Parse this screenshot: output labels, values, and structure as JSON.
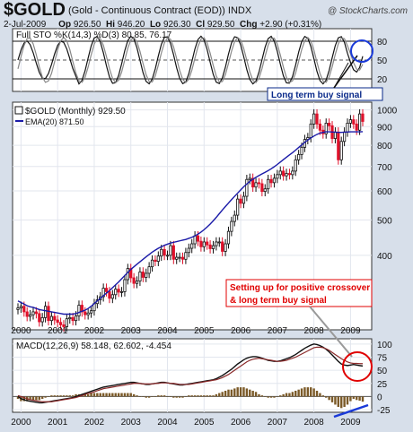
{
  "header": {
    "symbol": "$GOLD",
    "description": "(Gold - Continuous Contract (EOD)) INDX",
    "watermark": "@ StockCharts.com",
    "date": "2-Jul-2009",
    "open_label": "Op",
    "open": "926.50",
    "high_label": "Hi",
    "high": "946.20",
    "low_label": "Lo",
    "low": "926.30",
    "close_label": "Cl",
    "close": "929.50",
    "chg_label": "Chg",
    "chg": "+2.90 (+0.31%)"
  },
  "panels": {
    "sto": {
      "legend": "Full STO %K(14,3) %D(3) 80.85, 76.17"
    },
    "price": {
      "legend_price": "$GOLD (Monthly) 929.50",
      "legend_ema": "EMA(20) 871.50"
    },
    "macd": {
      "legend": "MACD(12,26,9) 58.148, 62.602, -4.454"
    }
  },
  "annotations": {
    "buy_signal": "Long term buy signal",
    "setup_line1": "Setting up for positive crossover",
    "setup_line2": "& long term buy signal"
  },
  "colors": {
    "up": "#111111",
    "down": "#e0102a",
    "ema": "#1a1aa8",
    "signal": "#8b2a2a",
    "accent": "#0a2a8a",
    "callout_red": "#e00000"
  },
  "chart_data": [
    {
      "type": "line",
      "name": "Full STO",
      "x_ticks": [],
      "y_ticks": [
        20,
        50,
        80
      ],
      "ylim": [
        0,
        100
      ]
    },
    {
      "type": "bar",
      "name": "$GOLD Monthly",
      "x_ticks": [
        "2000",
        "2001",
        "2002",
        "2003",
        "2004",
        "2005",
        "2006",
        "2007",
        "2008",
        "2009"
      ],
      "y_ticks": [
        400,
        500,
        600,
        700,
        800,
        900,
        1000
      ],
      "ylim": [
        250,
        1050
      ],
      "scale": "log",
      "series": [
        {
          "name": "Close",
          "values": [
            287,
            290,
            280,
            272,
            275,
            280,
            277,
            263,
            270,
            290,
            265,
            272,
            266,
            262,
            258,
            255,
            268,
            270,
            265,
            273,
            292,
            280,
            275,
            278,
            282,
            295,
            302,
            308,
            325,
            318,
            305,
            312,
            323,
            317,
            318,
            343,
            368,
            347,
            335,
            340,
            360,
            348,
            357,
            372,
            388,
            385,
            398,
            415,
            400,
            400,
            425,
            390,
            395,
            395,
            390,
            407,
            418,
            430,
            452,
            437,
            422,
            435,
            427,
            417,
            425,
            435,
            435,
            410,
            430,
            465,
            495,
            515,
            570,
            555,
            580,
            645,
            650,
            615,
            632,
            628,
            598,
            608,
            645,
            632,
            650,
            665,
            680,
            660,
            670,
            665,
            680,
            730,
            755,
            790,
            830,
            840,
            915,
            975,
            915,
            880,
            860,
            920,
            905,
            835,
            870,
            730,
            820,
            870,
            920,
            940,
            915,
            880,
            975,
            930
          ]
        },
        {
          "name": "EMA(20)",
          "values": [
            300,
            297,
            294,
            291,
            289,
            288,
            286,
            284,
            283,
            282,
            281,
            280,
            279,
            278,
            277,
            276,
            276,
            276,
            276,
            277,
            279,
            281,
            283,
            286,
            290,
            295,
            300,
            305,
            310,
            315,
            320,
            326,
            332,
            338,
            345,
            352,
            359,
            366,
            372,
            378,
            384,
            390,
            396,
            402,
            408,
            413,
            418,
            422,
            426,
            429,
            432,
            434,
            436,
            438,
            440,
            442,
            445,
            448,
            452,
            457,
            463,
            470,
            478,
            487,
            497,
            508,
            520,
            532,
            544,
            556,
            568,
            580,
            592,
            604,
            616,
            627,
            637,
            646,
            654,
            661,
            668,
            675,
            682,
            690,
            699,
            709,
            720,
            731,
            742,
            753,
            764,
            776,
            789,
            802,
            815,
            827,
            838,
            848,
            857,
            864,
            868,
            871,
            871,
            870,
            869,
            868,
            868,
            869,
            870,
            871,
            871,
            871,
            871,
            871.5
          ]
        }
      ]
    },
    {
      "type": "line",
      "name": "MACD",
      "y_ticks": [
        -25,
        0,
        25,
        50,
        75,
        100
      ],
      "ylim": [
        -30,
        110
      ],
      "series": [
        {
          "name": "MACD",
          "values": [
            0,
            -4,
            -6,
            -8,
            -9,
            -10,
            -11,
            -12,
            -12,
            -11,
            -10,
            -9,
            -8,
            -7,
            -6,
            -5,
            -4,
            -3,
            -2,
            0,
            2,
            4,
            6,
            8,
            10,
            12,
            14,
            16,
            18,
            19,
            20,
            21,
            22,
            23,
            24,
            25,
            26,
            27,
            27,
            26,
            25,
            24,
            23,
            23,
            24,
            25,
            26,
            27,
            27,
            26,
            25,
            24,
            23,
            22,
            22,
            23,
            24,
            25,
            26,
            27,
            28,
            29,
            30,
            31,
            32,
            34,
            37,
            40,
            44,
            48,
            52,
            57,
            62,
            66,
            70,
            73,
            75,
            76,
            76,
            75,
            73,
            71,
            69,
            68,
            67,
            67,
            68,
            70,
            72,
            74,
            77,
            80,
            84,
            88,
            92,
            95,
            98,
            100,
            99,
            97,
            94,
            90,
            85,
            79,
            73,
            67,
            62,
            60,
            59,
            60,
            61,
            60,
            59,
            58.148
          ]
        },
        {
          "name": "Signal",
          "values": [
            2,
            0,
            -2,
            -4,
            -6,
            -7,
            -8,
            -9,
            -10,
            -10,
            -10,
            -10,
            -9,
            -8,
            -7,
            -6,
            -5,
            -4,
            -3,
            -2,
            0,
            2,
            4,
            6,
            7,
            9,
            11,
            13,
            15,
            16,
            17,
            18,
            19,
            20,
            21,
            22,
            23,
            24,
            25,
            25,
            25,
            24,
            24,
            24,
            24,
            25,
            25,
            26,
            26,
            26,
            25,
            25,
            24,
            23,
            23,
            23,
            23,
            24,
            25,
            26,
            27,
            28,
            29,
            30,
            31,
            32,
            34,
            36,
            39,
            42,
            46,
            50,
            54,
            58,
            62,
            66,
            69,
            71,
            72,
            73,
            72,
            71,
            70,
            69,
            68,
            67,
            67,
            68,
            69,
            71,
            73,
            75,
            78,
            81,
            84,
            87,
            90,
            93,
            94,
            94,
            93,
            91,
            88,
            84,
            80,
            76,
            72,
            69,
            66,
            64,
            63,
            63,
            62.602,
            62.602
          ]
        }
      ]
    }
  ]
}
